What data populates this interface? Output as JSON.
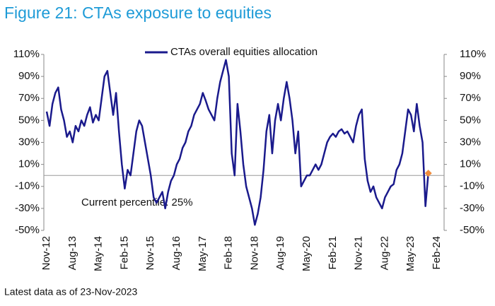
{
  "chart_data": {
    "type": "line",
    "title": "Figure 21: CTAs exposure to equities",
    "annotation": "Current percentile: 25%",
    "footnote": "Latest data as of 23-Nov-2023",
    "categories": [
      "Nov-12",
      null,
      null,
      null,
      null,
      null,
      null,
      null,
      null,
      "Aug-13",
      null,
      null,
      null,
      null,
      null,
      null,
      null,
      null,
      "May-14",
      null,
      null,
      null,
      null,
      null,
      null,
      null,
      null,
      "Feb-15",
      null,
      null,
      null,
      null,
      null,
      null,
      null,
      null,
      "Nov-15",
      null,
      null,
      null,
      null,
      null,
      null,
      null,
      null,
      "Aug-16",
      null,
      null,
      null,
      null,
      null,
      null,
      null,
      null,
      "May-17",
      null,
      null,
      null,
      null,
      null,
      null,
      null,
      null,
      "Feb-18",
      null,
      null,
      null,
      null,
      null,
      null,
      null,
      null,
      "Nov-18",
      null,
      null,
      null,
      null,
      null,
      null,
      null,
      null,
      "Aug-19",
      null,
      null,
      null,
      null,
      null,
      null,
      null,
      null,
      "May-20",
      null,
      null,
      null,
      null,
      null,
      null,
      null,
      null,
      "Feb-21",
      null,
      null,
      null,
      null,
      null,
      null,
      null,
      null,
      "Nov-21",
      null,
      null,
      null,
      null,
      null,
      null,
      null,
      null,
      "Aug-22",
      null,
      null,
      null,
      null,
      null,
      null,
      null,
      null,
      "May-23",
      null,
      null,
      null,
      null,
      null,
      null,
      null,
      null,
      "Feb-24"
    ],
    "series": [
      {
        "name": "CTAs overall equities allocation",
        "color": "#1a1a8c",
        "values": [
          58,
          45,
          65,
          75,
          80,
          60,
          50,
          35,
          40,
          30,
          45,
          40,
          50,
          45,
          55,
          62,
          48,
          55,
          50,
          70,
          90,
          95,
          75,
          55,
          75,
          40,
          10,
          -12,
          5,
          0,
          20,
          40,
          50,
          45,
          30,
          15,
          0,
          -20,
          -25,
          -20,
          -15,
          -30,
          -15,
          -5,
          0,
          10,
          15,
          25,
          30,
          40,
          45,
          55,
          60,
          65,
          75,
          68,
          60,
          55,
          50,
          70,
          85,
          95,
          105,
          90,
          20,
          0,
          65,
          40,
          10,
          -10,
          -20,
          -30,
          -45,
          -35,
          -20,
          5,
          40,
          55,
          20,
          50,
          65,
          50,
          70,
          85,
          70,
          50,
          20,
          40,
          -10,
          -5,
          0,
          0,
          5,
          10,
          5,
          10,
          20,
          30,
          35,
          38,
          35,
          40,
          42,
          38,
          40,
          35,
          30,
          45,
          55,
          60,
          15,
          -5,
          -15,
          -10,
          -20,
          -25,
          -30,
          -20,
          -15,
          -10,
          -8,
          5,
          10,
          20,
          40,
          60,
          55,
          40,
          65,
          45,
          30,
          -28,
          2,
          null,
          null,
          null
        ]
      }
    ],
    "marker_color": "#f08c3c",
    "hline": 0,
    "ylim": [
      -50,
      110
    ],
    "yticks": [
      {
        "value": -50,
        "label": "-50%"
      },
      {
        "value": -30,
        "label": "-30%"
      },
      {
        "value": -10,
        "label": "-10%"
      },
      {
        "value": 10,
        "label": "10%"
      },
      {
        "value": 30,
        "label": "30%"
      },
      {
        "value": 50,
        "label": "50%"
      },
      {
        "value": 70,
        "label": "70%"
      },
      {
        "value": 90,
        "label": "90%"
      },
      {
        "value": 110,
        "label": "110%"
      }
    ],
    "y2lim": [
      -50,
      110
    ],
    "y2ticks": [
      {
        "value": -50,
        "label": "-50%"
      },
      {
        "value": -30,
        "label": "-30%"
      },
      {
        "value": -10,
        "label": "-10%"
      },
      {
        "value": 10,
        "label": "10%"
      },
      {
        "value": 30,
        "label": "30%"
      },
      {
        "value": 50,
        "label": "50%"
      },
      {
        "value": 70,
        "label": "70%"
      },
      {
        "value": 90,
        "label": "90%"
      },
      {
        "value": 110,
        "label": "110%"
      }
    ],
    "legend": "top"
  }
}
